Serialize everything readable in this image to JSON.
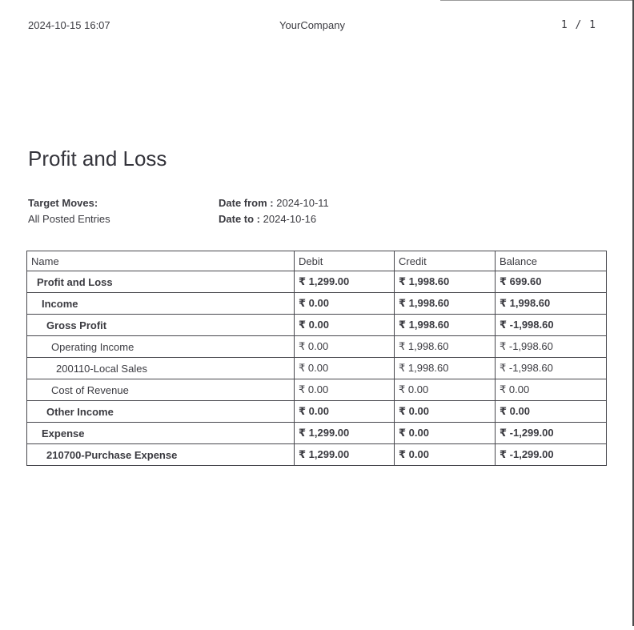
{
  "page_header": {
    "datetime": "2024-10-15 16:07",
    "company": "YourCompany",
    "page_number": "1 / 1"
  },
  "report": {
    "title": "Profit and Loss",
    "filters": {
      "target_moves_label": "Target Moves:",
      "target_moves_value": "All Posted Entries",
      "date_from_label": "Date from :",
      "date_from_value": "2024-10-11",
      "date_to_label": "Date to :",
      "date_to_value": "2024-10-16"
    }
  },
  "table": {
    "columns": [
      "Name",
      "Debit",
      "Credit",
      "Balance"
    ],
    "rows": [
      {
        "name": "Profit and Loss",
        "level": 0,
        "bold": true,
        "debit": "₹ 1,299.00",
        "credit": "₹ 1,998.60",
        "balance": "₹ 699.60"
      },
      {
        "name": "Income",
        "level": 1,
        "bold": true,
        "debit": "₹ 0.00",
        "credit": "₹ 1,998.60",
        "balance": "₹ 1,998.60"
      },
      {
        "name": "Gross Profit",
        "level": 2,
        "bold": true,
        "debit": "₹ 0.00",
        "credit": "₹ 1,998.60",
        "balance": "₹ -1,998.60"
      },
      {
        "name": "Operating Income",
        "level": 3,
        "bold": false,
        "debit": "₹ 0.00",
        "credit": "₹ 1,998.60",
        "balance": "₹ -1,998.60"
      },
      {
        "name": "200110-Local Sales",
        "level": 4,
        "bold": false,
        "debit": "₹ 0.00",
        "credit": "₹ 1,998.60",
        "balance": "₹ -1,998.60"
      },
      {
        "name": "Cost of Revenue",
        "level": 3,
        "bold": false,
        "debit": "₹ 0.00",
        "credit": "₹ 0.00",
        "balance": "₹ 0.00"
      },
      {
        "name": "Other Income",
        "level": 2,
        "bold": true,
        "debit": "₹ 0.00",
        "credit": "₹ 0.00",
        "balance": "₹ 0.00"
      },
      {
        "name": "Expense",
        "level": 1,
        "bold": true,
        "debit": "₹ 1,299.00",
        "credit": "₹ 0.00",
        "balance": "₹ -1,299.00"
      },
      {
        "name": "210700-Purchase Expense",
        "level": 2,
        "bold": true,
        "debit": "₹ 1,299.00",
        "credit": "₹ 0.00",
        "balance": "₹ -1,299.00"
      }
    ]
  },
  "colors": {
    "text": "#3b3b41",
    "table_border": "#47474d",
    "edge_top": "#9b9b9b",
    "edge_right": "#4a4a4a"
  }
}
